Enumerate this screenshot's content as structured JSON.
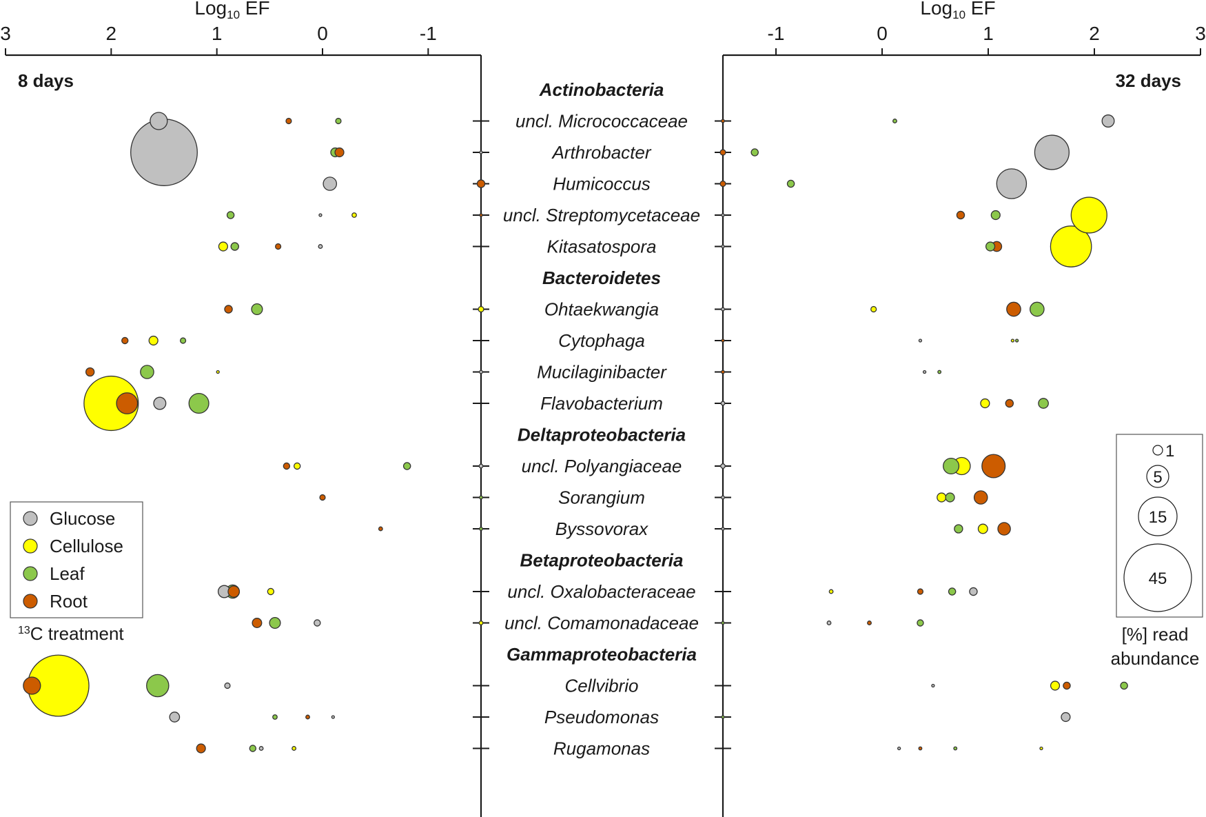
{
  "chart_data": {
    "type": "bubble",
    "axis_title_left": [
      "Log",
      "10",
      " EF"
    ],
    "axis_title_right": [
      "Log",
      "10",
      " EF"
    ],
    "left_panel": {
      "label": "8 days",
      "xlim": [
        3,
        -1.5
      ],
      "ticks": [
        {
          "v": 3,
          "label": "3"
        },
        {
          "v": 2,
          "label": "2"
        },
        {
          "v": 1,
          "label": "1"
        },
        {
          "v": 0,
          "label": "0"
        },
        {
          "v": -1,
          "label": "-1"
        }
      ]
    },
    "right_panel": {
      "label": "32 days",
      "xlim": [
        -1.5,
        3
      ],
      "ticks": [
        {
          "v": -1,
          "label": "-1"
        },
        {
          "v": 0,
          "label": "0"
        },
        {
          "v": 1,
          "label": "1"
        },
        {
          "v": 2,
          "label": "2"
        },
        {
          "v": 3,
          "label": "3"
        }
      ]
    },
    "rows": [
      {
        "label": "Actinobacteria",
        "header": true
      },
      {
        "label": "uncl. Micrococcaceae"
      },
      {
        "label": "Arthrobacter"
      },
      {
        "label": "Humicoccus"
      },
      {
        "label": "uncl. Streptomycetaceae"
      },
      {
        "label": "Kitasatospora"
      },
      {
        "label": "Bacteroidetes",
        "header": true
      },
      {
        "label": "Ohtaekwangia"
      },
      {
        "label": "Cytophaga"
      },
      {
        "label": "Mucilaginibacter"
      },
      {
        "label": "Flavobacterium"
      },
      {
        "label": "Deltaproteobacteria",
        "header": true
      },
      {
        "label": "uncl. Polyangiaceae"
      },
      {
        "label": "Sorangium"
      },
      {
        "label": "Byssovorax"
      },
      {
        "label": "Betaproteobacteria",
        "header": true
      },
      {
        "label": "uncl. Oxalobacteraceae"
      },
      {
        "label": "uncl. Comamonadaceae"
      },
      {
        "label": "Gammaproteobacteria",
        "header": true
      },
      {
        "label": "Cellvibrio"
      },
      {
        "label": "Pseudomonas"
      },
      {
        "label": "Rugamonas"
      }
    ],
    "treatments": [
      {
        "name": "Glucose",
        "color": "#c0c0c0"
      },
      {
        "name": "Cellulose",
        "color": "#ffff00"
      },
      {
        "name": "Leaf",
        "color": "#8cc84b"
      },
      {
        "name": "Root",
        "color": "#cc5c00"
      }
    ],
    "legend_caption": [
      "13",
      "C treatment"
    ],
    "size_legend": {
      "values": [
        1,
        5,
        15,
        45
      ],
      "labels": [
        "1",
        "5",
        "15",
        "45"
      ],
      "caption": [
        "[%] read",
        "abundance"
      ]
    },
    "points_8d": [
      {
        "taxon": "uncl. Micrococcaceae",
        "treatment": "Glucose",
        "ef": 1.55,
        "abundance": 3
      },
      {
        "taxon": "uncl. Micrococcaceae",
        "treatment": "Root",
        "ef": 0.32,
        "abundance": 0.3
      },
      {
        "taxon": "uncl. Micrococcaceae",
        "treatment": "Leaf",
        "ef": -0.15,
        "abundance": 0.3
      },
      {
        "taxon": "Arthrobacter",
        "treatment": "Glucose",
        "ef": 1.5,
        "abundance": 45
      },
      {
        "taxon": "Arthrobacter",
        "treatment": "Leaf",
        "ef": -0.12,
        "abundance": 0.8
      },
      {
        "taxon": "Arthrobacter",
        "treatment": "Root",
        "ef": -0.16,
        "abundance": 0.8
      },
      {
        "taxon": "Arthrobacter",
        "treatment": "Glucose",
        "ef": -1.5,
        "abundance": 0.05
      },
      {
        "taxon": "Humicoccus",
        "treatment": "Glucose",
        "ef": -0.07,
        "abundance": 1.8
      },
      {
        "taxon": "Humicoccus",
        "treatment": "Root",
        "ef": -1.5,
        "abundance": 0.6
      },
      {
        "taxon": "uncl. Streptomycetaceae",
        "treatment": "Leaf",
        "ef": 0.87,
        "abundance": 0.5
      },
      {
        "taxon": "uncl. Streptomycetaceae",
        "treatment": "Glucose",
        "ef": 0.02,
        "abundance": 0.05
      },
      {
        "taxon": "uncl. Streptomycetaceae",
        "treatment": "Cellulose",
        "ef": -0.3,
        "abundance": 0.2
      },
      {
        "taxon": "uncl. Streptomycetaceae",
        "treatment": "Root",
        "ef": -1.5,
        "abundance": 0.05
      },
      {
        "taxon": "Kitasatospora",
        "treatment": "Cellulose",
        "ef": 0.94,
        "abundance": 0.8
      },
      {
        "taxon": "Kitasatospora",
        "treatment": "Leaf",
        "ef": 0.83,
        "abundance": 0.6
      },
      {
        "taxon": "Kitasatospora",
        "treatment": "Root",
        "ef": 0.42,
        "abundance": 0.3
      },
      {
        "taxon": "Kitasatospora",
        "treatment": "Glucose",
        "ef": 0.02,
        "abundance": 0.15
      },
      {
        "taxon": "Ohtaekwangia",
        "treatment": "Root",
        "ef": 0.89,
        "abundance": 0.6
      },
      {
        "taxon": "Ohtaekwangia",
        "treatment": "Leaf",
        "ef": 0.62,
        "abundance": 1.2
      },
      {
        "taxon": "Ohtaekwangia",
        "treatment": "Cellulose",
        "ef": -1.5,
        "abundance": 0.3
      },
      {
        "taxon": "Cytophaga",
        "treatment": "Root",
        "ef": 1.87,
        "abundance": 0.4
      },
      {
        "taxon": "Cytophaga",
        "treatment": "Cellulose",
        "ef": 1.6,
        "abundance": 0.8
      },
      {
        "taxon": "Cytophaga",
        "treatment": "Leaf",
        "ef": 1.32,
        "abundance": 0.3
      },
      {
        "taxon": "Mucilaginibacter",
        "treatment": "Root",
        "ef": 2.2,
        "abundance": 0.7
      },
      {
        "taxon": "Mucilaginibacter",
        "treatment": "Leaf",
        "ef": 1.66,
        "abundance": 1.8
      },
      {
        "taxon": "Mucilaginibacter",
        "treatment": "Cellulose",
        "ef": 0.99,
        "abundance": 0.05
      },
      {
        "taxon": "Mucilaginibacter",
        "treatment": "Glucose",
        "ef": -1.5,
        "abundance": 0.1
      },
      {
        "taxon": "Flavobacterium",
        "treatment": "Cellulose",
        "ef": 2.0,
        "abundance": 30
      },
      {
        "taxon": "Flavobacterium",
        "treatment": "Root",
        "ef": 1.85,
        "abundance": 4.5
      },
      {
        "taxon": "Flavobacterium",
        "treatment": "Glucose",
        "ef": 1.54,
        "abundance": 1.5
      },
      {
        "taxon": "Flavobacterium",
        "treatment": "Leaf",
        "ef": 1.17,
        "abundance": 4
      },
      {
        "taxon": "uncl. Polyangiaceae",
        "treatment": "Root",
        "ef": 0.34,
        "abundance": 0.4
      },
      {
        "taxon": "uncl. Polyangiaceae",
        "treatment": "Cellulose",
        "ef": 0.24,
        "abundance": 0.4
      },
      {
        "taxon": "uncl. Polyangiaceae",
        "treatment": "Leaf",
        "ef": -0.8,
        "abundance": 0.5
      },
      {
        "taxon": "uncl. Polyangiaceae",
        "treatment": "Glucose",
        "ef": -1.5,
        "abundance": 0.15
      },
      {
        "taxon": "Sorangium",
        "treatment": "Root",
        "ef": 0.0,
        "abundance": 0.3
      },
      {
        "taxon": "Sorangium",
        "treatment": "Leaf",
        "ef": -1.5,
        "abundance": 0.1
      },
      {
        "taxon": "Byssovorax",
        "treatment": "Root",
        "ef": -0.55,
        "abundance": 0.15
      },
      {
        "taxon": "Byssovorax",
        "treatment": "Leaf",
        "ef": -1.5,
        "abundance": 0.1
      },
      {
        "taxon": "uncl. Oxalobacteraceae",
        "treatment": "Glucose",
        "ef": 0.93,
        "abundance": 1.5
      },
      {
        "taxon": "uncl. Oxalobacteraceae",
        "treatment": "Leaf",
        "ef": 0.85,
        "abundance": 1.8
      },
      {
        "taxon": "uncl. Oxalobacteraceae",
        "treatment": "Root",
        "ef": 0.84,
        "abundance": 1.3
      },
      {
        "taxon": "uncl. Oxalobacteraceae",
        "treatment": "Cellulose",
        "ef": 0.49,
        "abundance": 0.4
      },
      {
        "taxon": "uncl. Comamonadaceae",
        "treatment": "Root",
        "ef": 0.62,
        "abundance": 0.9
      },
      {
        "taxon": "uncl. Comamonadaceae",
        "treatment": "Leaf",
        "ef": 0.45,
        "abundance": 1.2
      },
      {
        "taxon": "uncl. Comamonadaceae",
        "treatment": "Glucose",
        "ef": 0.05,
        "abundance": 0.4
      },
      {
        "taxon": "uncl. Comamonadaceae",
        "treatment": "Cellulose",
        "ef": -1.5,
        "abundance": 0.15
      },
      {
        "taxon": "Cellvibrio",
        "treatment": "Cellulose",
        "ef": 2.5,
        "abundance": 38
      },
      {
        "taxon": "Cellvibrio",
        "treatment": "Root",
        "ef": 2.75,
        "abundance": 3
      },
      {
        "taxon": "Cellvibrio",
        "treatment": "Leaf",
        "ef": 1.56,
        "abundance": 5
      },
      {
        "taxon": "Cellvibrio",
        "treatment": "Glucose",
        "ef": 0.9,
        "abundance": 0.3
      },
      {
        "taxon": "Pseudomonas",
        "treatment": "Glucose",
        "ef": 1.4,
        "abundance": 1
      },
      {
        "taxon": "Pseudomonas",
        "treatment": "Leaf",
        "ef": 0.45,
        "abundance": 0.2
      },
      {
        "taxon": "Pseudomonas",
        "treatment": "Root",
        "ef": 0.14,
        "abundance": 0.15
      },
      {
        "taxon": "Pseudomonas",
        "treatment": "Glucose",
        "ef": -0.1,
        "abundance": 0.02
      },
      {
        "taxon": "Rugamonas",
        "treatment": "Root",
        "ef": 1.15,
        "abundance": 0.8
      },
      {
        "taxon": "Rugamonas",
        "treatment": "Leaf",
        "ef": 0.66,
        "abundance": 0.4
      },
      {
        "taxon": "Rugamonas",
        "treatment": "Glucose",
        "ef": 0.58,
        "abundance": 0.15
      },
      {
        "taxon": "Rugamonas",
        "treatment": "Cellulose",
        "ef": 0.27,
        "abundance": 0.15
      }
    ],
    "points_32d": [
      {
        "taxon": "uncl. Micrococcaceae",
        "treatment": "Root",
        "ef": -1.5,
        "abundance": 0.1
      },
      {
        "taxon": "uncl. Micrococcaceae",
        "treatment": "Leaf",
        "ef": 0.12,
        "abundance": 0.15
      },
      {
        "taxon": "uncl. Micrococcaceae",
        "treatment": "Glucose",
        "ef": 2.13,
        "abundance": 1.5
      },
      {
        "taxon": "Arthrobacter",
        "treatment": "Root",
        "ef": -1.5,
        "abundance": 0.3
      },
      {
        "taxon": "Arthrobacter",
        "treatment": "Leaf",
        "ef": -1.2,
        "abundance": 0.5
      },
      {
        "taxon": "Arthrobacter",
        "treatment": "Glucose",
        "ef": 1.6,
        "abundance": 12
      },
      {
        "taxon": "Humicoccus",
        "treatment": "Root",
        "ef": -1.5,
        "abundance": 0.3
      },
      {
        "taxon": "Humicoccus",
        "treatment": "Leaf",
        "ef": -0.86,
        "abundance": 0.5
      },
      {
        "taxon": "Humicoccus",
        "treatment": "Glucose",
        "ef": 1.22,
        "abundance": 9
      },
      {
        "taxon": "uncl. Streptomycetaceae",
        "treatment": "Glucose",
        "ef": -1.5,
        "abundance": 0.02
      },
      {
        "taxon": "uncl. Streptomycetaceae",
        "treatment": "Root",
        "ef": 0.74,
        "abundance": 0.6
      },
      {
        "taxon": "uncl. Streptomycetaceae",
        "treatment": "Leaf",
        "ef": 1.07,
        "abundance": 0.8
      },
      {
        "taxon": "uncl. Streptomycetaceae",
        "treatment": "Cellulose",
        "ef": 1.95,
        "abundance": 13
      },
      {
        "taxon": "Kitasatospora",
        "treatment": "Glucose",
        "ef": -1.5,
        "abundance": 0.02
      },
      {
        "taxon": "Kitasatospora",
        "treatment": "Leaf",
        "ef": 1.02,
        "abundance": 0.8
      },
      {
        "taxon": "Kitasatospora",
        "treatment": "Root",
        "ef": 1.08,
        "abundance": 1
      },
      {
        "taxon": "Kitasatospora",
        "treatment": "Cellulose",
        "ef": 1.78,
        "abundance": 17
      },
      {
        "taxon": "Ohtaekwangia",
        "treatment": "Glucose",
        "ef": -1.5,
        "abundance": 0.1
      },
      {
        "taxon": "Ohtaekwangia",
        "treatment": "Cellulose",
        "ef": -0.08,
        "abundance": 0.3
      },
      {
        "taxon": "Ohtaekwangia",
        "treatment": "Root",
        "ef": 1.24,
        "abundance": 2
      },
      {
        "taxon": "Ohtaekwangia",
        "treatment": "Leaf",
        "ef": 1.46,
        "abundance": 2
      },
      {
        "taxon": "Cytophaga",
        "treatment": "Root",
        "ef": -1.5,
        "abundance": 0.05
      },
      {
        "taxon": "Cytophaga",
        "treatment": "Glucose",
        "ef": 0.36,
        "abundance": 0.02
      },
      {
        "taxon": "Cytophaga",
        "treatment": "Cellulose",
        "ef": 1.23,
        "abundance": 0.05
      },
      {
        "taxon": "Cytophaga",
        "treatment": "Leaf",
        "ef": 1.27,
        "abundance": 0.05
      },
      {
        "taxon": "Mucilaginibacter",
        "treatment": "Root",
        "ef": -1.5,
        "abundance": 0.1
      },
      {
        "taxon": "Mucilaginibacter",
        "treatment": "Glucose",
        "ef": 0.4,
        "abundance": 0.05
      },
      {
        "taxon": "Mucilaginibacter",
        "treatment": "Leaf",
        "ef": 0.54,
        "abundance": 0.1
      },
      {
        "taxon": "Flavobacterium",
        "treatment": "Glucose",
        "ef": -1.5,
        "abundance": 0.15
      },
      {
        "taxon": "Flavobacterium",
        "treatment": "Cellulose",
        "ef": 0.97,
        "abundance": 0.8
      },
      {
        "taxon": "Flavobacterium",
        "treatment": "Root",
        "ef": 1.2,
        "abundance": 0.6
      },
      {
        "taxon": "Flavobacterium",
        "treatment": "Leaf",
        "ef": 1.52,
        "abundance": 1
      },
      {
        "taxon": "uncl. Polyangiaceae",
        "treatment": "Glucose",
        "ef": -1.5,
        "abundance": 0.2
      },
      {
        "taxon": "uncl. Polyangiaceae",
        "treatment": "Cellulose",
        "ef": 0.75,
        "abundance": 3
      },
      {
        "taxon": "uncl. Polyangiaceae",
        "treatment": "Leaf",
        "ef": 0.65,
        "abundance": 2.5
      },
      {
        "taxon": "uncl. Polyangiaceae",
        "treatment": "Root",
        "ef": 1.05,
        "abundance": 5.5
      },
      {
        "taxon": "Sorangium",
        "treatment": "Glucose",
        "ef": -1.5,
        "abundance": 0.1
      },
      {
        "taxon": "Sorangium",
        "treatment": "Cellulose",
        "ef": 0.56,
        "abundance": 0.8
      },
      {
        "taxon": "Sorangium",
        "treatment": "Leaf",
        "ef": 0.64,
        "abundance": 0.8
      },
      {
        "taxon": "Sorangium",
        "treatment": "Root",
        "ef": 0.93,
        "abundance": 1.8
      },
      {
        "taxon": "Byssovorax",
        "treatment": "Glucose",
        "ef": -1.5,
        "abundance": 0.02
      },
      {
        "taxon": "Byssovorax",
        "treatment": "Leaf",
        "ef": 0.72,
        "abundance": 0.7
      },
      {
        "taxon": "Byssovorax",
        "treatment": "Cellulose",
        "ef": 0.95,
        "abundance": 0.9
      },
      {
        "taxon": "Byssovorax",
        "treatment": "Root",
        "ef": 1.15,
        "abundance": 1.6
      },
      {
        "taxon": "uncl. Oxalobacteraceae",
        "treatment": "Cellulose",
        "ef": -0.48,
        "abundance": 0.15
      },
      {
        "taxon": "uncl. Oxalobacteraceae",
        "treatment": "Root",
        "ef": 0.36,
        "abundance": 0.3
      },
      {
        "taxon": "uncl. Oxalobacteraceae",
        "treatment": "Leaf",
        "ef": 0.66,
        "abundance": 0.5
      },
      {
        "taxon": "uncl. Oxalobacteraceae",
        "treatment": "Glucose",
        "ef": 0.86,
        "abundance": 0.6
      },
      {
        "taxon": "uncl. Comamonadaceae",
        "treatment": "Leaf",
        "ef": -1.5,
        "abundance": 0.02
      },
      {
        "taxon": "uncl. Comamonadaceae",
        "treatment": "Glucose",
        "ef": -0.5,
        "abundance": 0.15
      },
      {
        "taxon": "uncl. Comamonadaceae",
        "treatment": "Root",
        "ef": -0.12,
        "abundance": 0.15
      },
      {
        "taxon": "uncl. Comamonadaceae",
        "treatment": "Leaf",
        "ef": 0.36,
        "abundance": 0.4
      },
      {
        "taxon": "Cellvibrio",
        "treatment": "Glucose",
        "ef": 0.48,
        "abundance": 0.02
      },
      {
        "taxon": "Cellvibrio",
        "treatment": "Cellulose",
        "ef": 1.63,
        "abundance": 0.8
      },
      {
        "taxon": "Cellvibrio",
        "treatment": "Root",
        "ef": 1.74,
        "abundance": 0.5
      },
      {
        "taxon": "Cellvibrio",
        "treatment": "Leaf",
        "ef": 2.28,
        "abundance": 0.5
      },
      {
        "taxon": "Pseudomonas",
        "treatment": "Leaf",
        "ef": -1.5,
        "abundance": 0.05
      },
      {
        "taxon": "Pseudomonas",
        "treatment": "Glucose",
        "ef": 1.73,
        "abundance": 0.8
      },
      {
        "taxon": "Rugamonas",
        "treatment": "Glucose",
        "ef": 0.16,
        "abundance": 0.05
      },
      {
        "taxon": "Rugamonas",
        "treatment": "Root",
        "ef": 0.36,
        "abundance": 0.1
      },
      {
        "taxon": "Rugamonas",
        "treatment": "Leaf",
        "ef": 0.69,
        "abundance": 0.1
      },
      {
        "taxon": "Rugamonas",
        "treatment": "Cellulose",
        "ef": 1.5,
        "abundance": 0.05
      }
    ]
  }
}
